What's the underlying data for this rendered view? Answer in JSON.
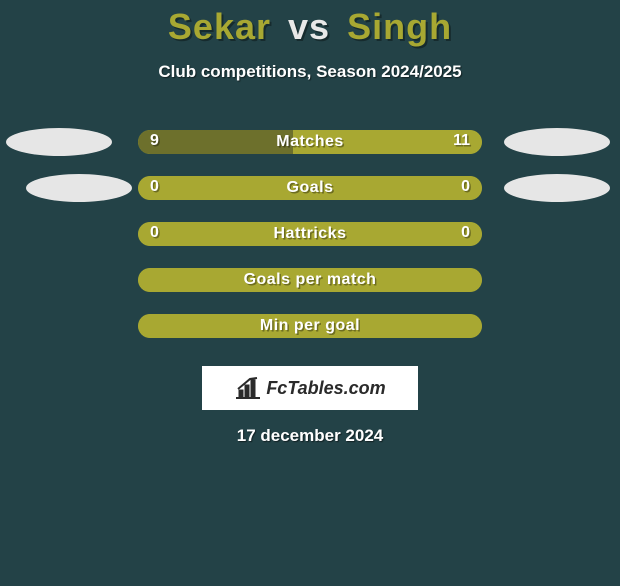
{
  "background_color": "#234247",
  "title": {
    "player1": "Sekar",
    "vs": "vs",
    "player2": "Singh",
    "player1_color": "#a8a832",
    "vs_color": "#e8e8e8",
    "player2_color": "#a8a832",
    "fontsize": 36
  },
  "subtitle": "Club competitions, Season 2024/2025",
  "subtitle_color": "#ffffff",
  "subtitle_fontsize": 17,
  "oval_color": "#e6e6e6",
  "bar_base_color": "#a8a832",
  "rows": [
    {
      "label": "Matches",
      "left_value": "9",
      "right_value": "11",
      "left_fill_color": "#6d702c",
      "right_fill_color": "#a8a832",
      "left_pct": 45,
      "right_pct": 55,
      "show_left_oval": true,
      "show_right_oval": true,
      "show_values": true,
      "oval_left_x": 6,
      "oval_right_x": 10
    },
    {
      "label": "Goals",
      "left_value": "0",
      "right_value": "0",
      "left_fill_color": "#a8a832",
      "right_fill_color": "#a8a832",
      "left_pct": 50,
      "right_pct": 50,
      "show_left_oval": true,
      "show_right_oval": true,
      "show_values": true,
      "oval_left_x": 26,
      "oval_right_x": 10
    },
    {
      "label": "Hattricks",
      "left_value": "0",
      "right_value": "0",
      "left_fill_color": "#a8a832",
      "right_fill_color": "#a8a832",
      "left_pct": 50,
      "right_pct": 50,
      "show_left_oval": false,
      "show_right_oval": false,
      "show_values": true
    },
    {
      "label": "Goals per match",
      "left_value": "",
      "right_value": "",
      "left_fill_color": "#a8a832",
      "right_fill_color": "#a8a832",
      "left_pct": 50,
      "right_pct": 50,
      "show_left_oval": false,
      "show_right_oval": false,
      "show_values": false
    },
    {
      "label": "Min per goal",
      "left_value": "",
      "right_value": "",
      "left_fill_color": "#a8a832",
      "right_fill_color": "#a8a832",
      "left_pct": 50,
      "right_pct": 50,
      "show_left_oval": false,
      "show_right_oval": false,
      "show_values": false
    }
  ],
  "logo_text": "FcTables.com",
  "logo_box_bg": "#ffffff",
  "logo_icon_color": "#2a2a2a",
  "date": "17 december 2024",
  "date_color": "#ffffff"
}
